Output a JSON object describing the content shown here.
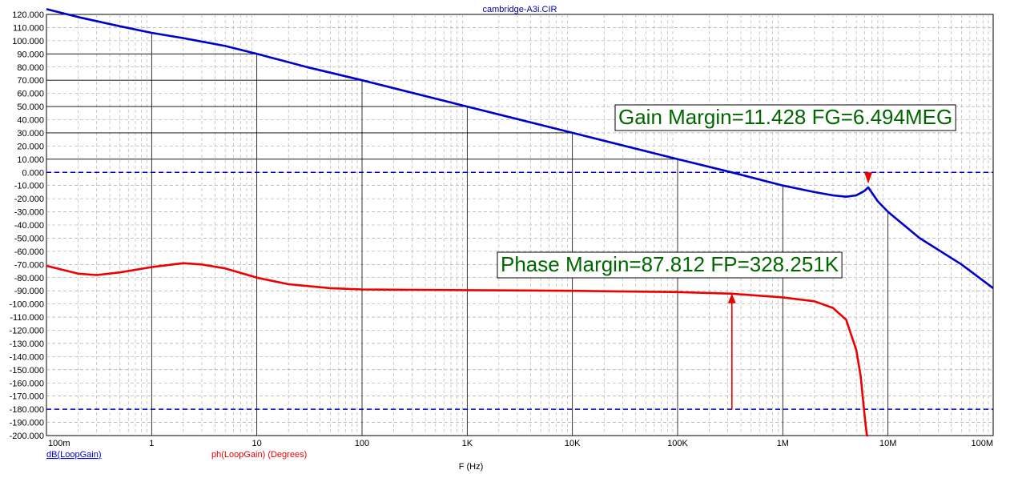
{
  "chart_data": {
    "type": "line",
    "title": "cambridge-A3i.CIR",
    "xlabel": "F (Hz)",
    "x_scale": "log",
    "xlim": [
      0.1,
      100000000
    ],
    "ylim": [
      -200,
      120
    ],
    "grid": true,
    "y_ticks": [
      "120.000",
      "110.000",
      "100.000",
      "90.000",
      "80.000",
      "70.000",
      "60.000",
      "50.000",
      "40.000",
      "30.000",
      "20.000",
      "10.000",
      "0.000",
      "-10.000",
      "-20.000",
      "-30.000",
      "-40.000",
      "-50.000",
      "-60.000",
      "-70.000",
      "-80.000",
      "-90.000",
      "-100.000",
      "-110.000",
      "-120.000",
      "-130.000",
      "-140.000",
      "-150.000",
      "-160.000",
      "-170.000",
      "-180.000",
      "-190.000",
      "-200.000"
    ],
    "x_ticks": [
      {
        "value": 0.1,
        "label": "100m"
      },
      {
        "value": 1,
        "label": "1"
      },
      {
        "value": 10,
        "label": "10"
      },
      {
        "value": 100,
        "label": "100"
      },
      {
        "value": 1000,
        "label": "1K"
      },
      {
        "value": 10000,
        "label": "10K"
      },
      {
        "value": 100000,
        "label": "100K"
      },
      {
        "value": 1000000,
        "label": "1M"
      },
      {
        "value": 10000000,
        "label": "10M"
      },
      {
        "value": 100000000,
        "label": "100M"
      }
    ],
    "series": [
      {
        "name": "dB(LoopGain)",
        "color": "#0000CC",
        "x": [
          0.1,
          0.2,
          0.5,
          1,
          2,
          5,
          10,
          30,
          100,
          1000,
          10000,
          100000,
          328251,
          1000000,
          2000000,
          3000000,
          4000000,
          5000000,
          6000000,
          6494000,
          8000000,
          10000000,
          20000000,
          50000000,
          100000000
        ],
        "y": [
          124,
          118,
          111,
          106,
          102,
          96,
          90,
          80,
          70,
          50,
          30,
          10,
          0,
          -10,
          -15,
          -17.5,
          -18.5,
          -17.5,
          -14,
          -11.4,
          -22,
          -30,
          -50,
          -70,
          -88
        ]
      },
      {
        "name": "ph(LoopGain) (Degrees)",
        "color": "#EE0000",
        "x": [
          0.1,
          0.2,
          0.3,
          0.5,
          1,
          2,
          3,
          5,
          10,
          20,
          50,
          100,
          1000,
          10000,
          100000,
          328251,
          1000000,
          2000000,
          3000000,
          4000000,
          5000000,
          5500000,
          6000000,
          6300000,
          6494000
        ],
        "y": [
          -71,
          -77,
          -78,
          -76,
          -72,
          -69,
          -70,
          -73,
          -80,
          -85,
          -88,
          -89,
          -89.5,
          -90,
          -91,
          -92.2,
          -95,
          -98,
          -103,
          -112,
          -135,
          -155,
          -185,
          -200,
          -200
        ]
      }
    ],
    "reference_lines": [
      0,
      -180
    ],
    "annotations": [
      {
        "text": "Gain Margin=11.428 FG=6.494MEG",
        "x": 6494000,
        "y_from": 0,
        "y_to": -11.428
      },
      {
        "text": "Phase Margin=87.812 FP=328.251K",
        "x": 328251,
        "y_from": -180,
        "y_to": -92.2
      }
    ],
    "legend": [
      {
        "text": "dB(LoopGain)",
        "color": "#0000CC"
      },
      {
        "text": "ph(LoopGain) (Degrees)",
        "color": "#EE0000"
      }
    ]
  }
}
